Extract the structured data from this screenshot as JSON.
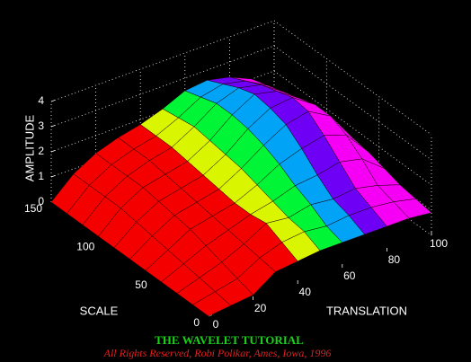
{
  "chart_data": {
    "type": "surface",
    "x_label": "TRANSLATION",
    "y_label": "SCALE",
    "z_label": "AMPLITUDE",
    "x": [
      0,
      10,
      20,
      30,
      40,
      50,
      60,
      70,
      80,
      90,
      100
    ],
    "y": [
      0,
      15,
      30,
      45,
      60,
      75,
      90,
      105,
      120,
      135,
      150
    ],
    "z": [
      [
        0,
        0.1,
        0.2,
        0.8,
        0.9,
        1.0,
        1.0,
        1.0,
        1.0,
        1.0,
        0.9
      ],
      [
        0,
        0.2,
        0.4,
        0.9,
        1.2,
        1.3,
        1.2,
        1.3,
        1.3,
        1.2,
        1.0
      ],
      [
        0,
        0.3,
        0.6,
        1.0,
        1.5,
        1.4,
        1.6,
        1.5,
        1.6,
        1.4,
        1.1
      ],
      [
        0,
        0.4,
        0.8,
        1.1,
        1.4,
        1.6,
        1.9,
        2.0,
        2.2,
        2.0,
        1.3
      ],
      [
        0,
        0.5,
        1.0,
        1.2,
        1.4,
        1.8,
        2.3,
        2.6,
        2.8,
        2.5,
        1.5
      ],
      [
        0,
        0.6,
        1.1,
        1.3,
        1.5,
        2.0,
        2.6,
        3.1,
        3.3,
        2.8,
        1.6
      ],
      [
        0,
        0.7,
        1.2,
        1.4,
        1.6,
        2.1,
        2.8,
        3.3,
        3.4,
        2.8,
        1.7
      ],
      [
        0,
        0.8,
        1.3,
        1.5,
        1.7,
        2.2,
        2.9,
        3.4,
        3.2,
        2.6,
        1.6
      ],
      [
        0,
        0.8,
        1.3,
        1.6,
        1.8,
        2.3,
        2.9,
        3.2,
        3.0,
        2.4,
        1.5
      ],
      [
        0,
        0.8,
        1.3,
        1.6,
        1.8,
        2.2,
        2.7,
        2.9,
        2.7,
        2.2,
        1.4
      ],
      [
        0,
        0.8,
        1.3,
        1.6,
        1.8,
        2.1,
        2.5,
        2.6,
        2.4,
        2.0,
        1.3
      ]
    ],
    "xlim": [
      0,
      100
    ],
    "xticks": [
      0,
      20,
      40,
      60,
      80,
      100
    ],
    "ylim": [
      0,
      150
    ],
    "yticks": [
      0,
      50,
      100,
      150
    ],
    "zlim": [
      0,
      4
    ],
    "zticks": [
      0,
      1,
      2,
      3,
      4
    ],
    "grid": true,
    "colormap": "hsv",
    "annotations": [
      "THE WAVELET TUTORIAL",
      "All Rights Reserved, Robi Polikar, Ames, Iowa, 1996"
    ]
  }
}
